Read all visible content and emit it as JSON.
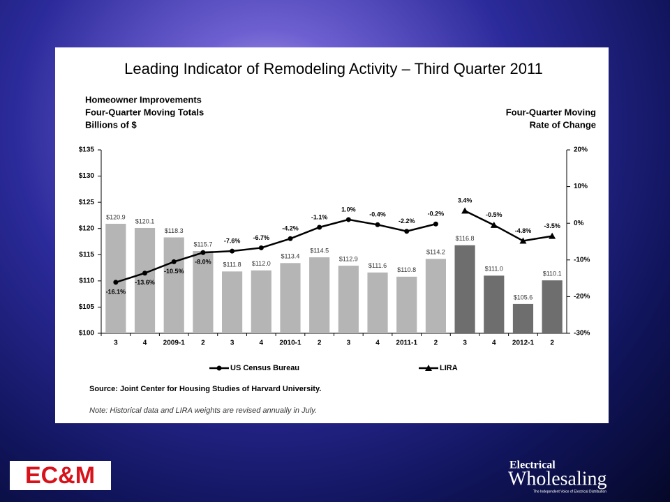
{
  "chart_data": {
    "type": "bar",
    "title": "Leading Indicator of Remodeling Activity – Third Quarter 2011",
    "y_label": [
      "Homeowner Improvements",
      "Four-Quarter Moving Totals",
      "Billions of $"
    ],
    "y2_label": [
      "Four-Quarter Moving",
      "Rate of Change"
    ],
    "categories": [
      "3",
      "4",
      "2009-1",
      "2",
      "3",
      "4",
      "2010-1",
      "2",
      "3",
      "4",
      "2011-1",
      "2",
      "3",
      "4",
      "2012-1",
      "2"
    ],
    "values": [
      120.9,
      120.1,
      118.3,
      115.7,
      111.8,
      112.0,
      113.4,
      114.5,
      112.9,
      111.6,
      110.8,
      114.2,
      116.8,
      111.0,
      105.6,
      110.1
    ],
    "value_labels": [
      "$120.9",
      "$120.1",
      "$118.3",
      "$115.7",
      "$111.8",
      "$112.0",
      "$113.4",
      "$114.5",
      "$112.9",
      "$111.6",
      "$110.8",
      "$114.2",
      "$116.8",
      "$111.0",
      "$105.6",
      "$110.1"
    ],
    "colors": [
      "#b5b5b5",
      "#b5b5b5",
      "#b5b5b5",
      "#b5b5b5",
      "#b5b5b5",
      "#b5b5b5",
      "#b5b5b5",
      "#b5b5b5",
      "#b5b5b5",
      "#b5b5b5",
      "#b5b5b5",
      "#b5b5b5",
      "#6e6e6e",
      "#6e6e6e",
      "#6e6e6e",
      "#6e6e6e"
    ],
    "ylim": [
      100,
      135
    ],
    "yticks": [
      {
        "value": 100,
        "label": "$100"
      },
      {
        "value": 105,
        "label": "$105"
      },
      {
        "value": 110,
        "label": "$110"
      },
      {
        "value": 115,
        "label": "$115"
      },
      {
        "value": 120,
        "label": "$120"
      },
      {
        "value": 125,
        "label": "$125"
      },
      {
        "value": 130,
        "label": "$130"
      },
      {
        "value": 135,
        "label": "$135"
      }
    ],
    "y2lim": [
      -30,
      20
    ],
    "y2ticks": [
      {
        "value": -30,
        "label": "-30%"
      },
      {
        "value": -20,
        "label": "-20%"
      },
      {
        "value": -10,
        "label": "-10%"
      },
      {
        "value": 0,
        "label": "0%"
      },
      {
        "value": 10,
        "label": "10%"
      },
      {
        "value": 20,
        "label": "20%"
      }
    ],
    "lines": [
      {
        "name": "US Census Bureau",
        "color": "#000000",
        "marker": "circle",
        "axis": "y2",
        "values": [
          -16.1,
          -13.6,
          -10.5,
          -8.0,
          -7.6,
          -6.7,
          -4.2,
          -1.1,
          1.0,
          -0.4,
          -2.2,
          -0.2,
          null,
          null,
          null,
          null
        ],
        "value_labels": [
          "-16.1%",
          "-13.6%",
          "-10.5%",
          "-8.0%",
          "-7.6%",
          "-6.7%",
          "-4.2%",
          "-1.1%",
          "1.0%",
          "-0.4%",
          "-2.2%",
          "-0.2%",
          null,
          null,
          null,
          null
        ]
      },
      {
        "name": "LIRA",
        "color": "#000000",
        "marker": "triangle",
        "axis": "y2",
        "values": [
          null,
          null,
          null,
          null,
          null,
          null,
          null,
          null,
          null,
          null,
          null,
          null,
          3.4,
          -0.5,
          -4.8,
          -3.5
        ],
        "value_labels": [
          null,
          null,
          null,
          null,
          null,
          null,
          null,
          null,
          null,
          null,
          null,
          null,
          "3.4%",
          "-0.5%",
          "-4.8%",
          "-3.5%"
        ]
      }
    ],
    "source": "Source: Joint Center for Housing Studies of Harvard University.",
    "note": "Note: Historical data and LIRA weights are revised annually in July."
  },
  "logos": {
    "left": "EC&M",
    "right_top": "Electrical",
    "right_main": "Wholesaling",
    "right_tagline": "The Independent Voice of Electrical Distribution"
  }
}
